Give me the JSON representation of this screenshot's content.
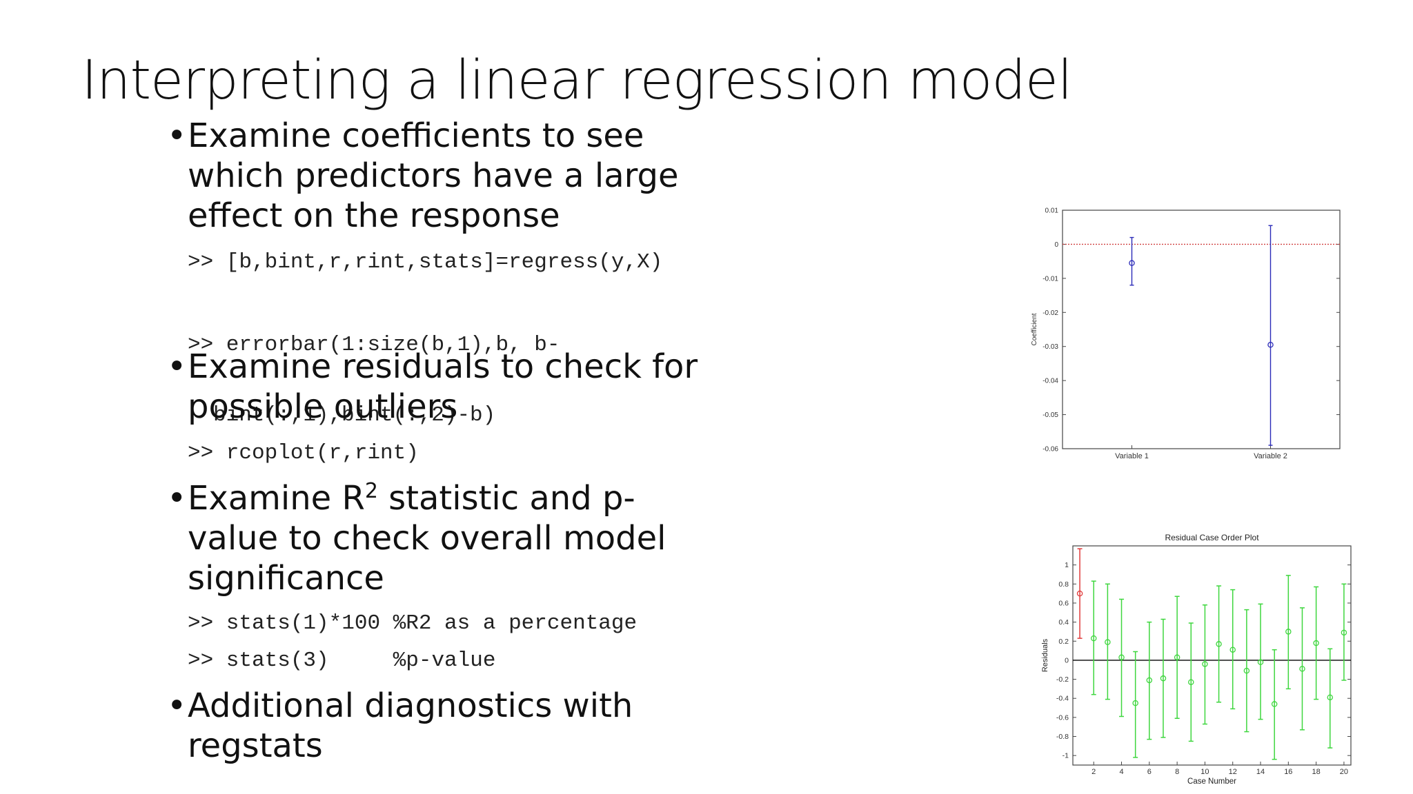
{
  "slide": {
    "title": "Interpreting a linear regression model",
    "bullets": [
      {
        "lines": [
          "Examine coefficients to see",
          "which predictors have a large",
          "effect on the response"
        ]
      },
      {
        "lines": [
          "Examine residuals to check for",
          "possible outliers"
        ]
      },
      {
        "lines_parts": [
          {
            "pre": "Examine R",
            "sup": "2",
            "post": " statistic and p-"
          }
        ],
        "lines": [
          "value to check overall model",
          "significance"
        ]
      },
      {
        "lines": [
          "Additional diagnostics with",
          "regstats"
        ]
      }
    ],
    "code": {
      "regress": ">> [b,bint,r,rint,stats]=regress(y,X)",
      "errorbar_1": ">> errorbar(1:size(b,1),b, b-",
      "errorbar_2": "bint(:,1),bint(:,2)-b)",
      "rcoplot": ">> rcoplot(r,rint)",
      "stats1": ">> stats(1)*100 %R2 as a percentage",
      "stats3": ">> stats(3)     %p-value"
    }
  },
  "chart_data": [
    {
      "type": "scatter",
      "title": "",
      "xlabel": "",
      "ylabel": "Coefficient",
      "categories": [
        "Variable 1",
        "Variable 2"
      ],
      "ylim": [
        -0.06,
        0.01
      ],
      "yticks": [
        "0.01",
        "0",
        "-0.01",
        "-0.02",
        "-0.03",
        "-0.04",
        "-0.05",
        "-0.06"
      ],
      "reference_line": {
        "y": 0,
        "color": "#d04040",
        "style": "dotted"
      },
      "points": [
        {
          "x": 1,
          "y": -0.0055,
          "low": -0.012,
          "high": 0.002
        },
        {
          "x": 2,
          "y": -0.0295,
          "low": -0.059,
          "high": 0.0055
        }
      ],
      "color": "#2a2ab8"
    },
    {
      "type": "scatter",
      "title": "Residual Case Order Plot",
      "xlabel": "Case Number",
      "ylabel": "Residuals",
      "xlim": [
        0.5,
        20.5
      ],
      "ylim": [
        -1.1,
        1.2
      ],
      "xticks": [
        "2",
        "4",
        "6",
        "8",
        "10",
        "12",
        "14",
        "16",
        "18",
        "20"
      ],
      "yticks": [
        "1",
        "0.8",
        "0.6",
        "0.4",
        "0.2",
        "0",
        "-0.2",
        "-0.4",
        "-0.6",
        "-0.8",
        "-1"
      ],
      "reference_line": {
        "y": 0,
        "color": "#000000"
      },
      "colors": {
        "normal": "#3ed63e",
        "outlier": "#e03a3a"
      },
      "points": [
        {
          "x": 1,
          "y": 0.7,
          "low": 0.23,
          "high": 1.17,
          "outlier": true
        },
        {
          "x": 2,
          "y": 0.23,
          "low": -0.36,
          "high": 0.83
        },
        {
          "x": 3,
          "y": 0.19,
          "low": -0.41,
          "high": 0.8
        },
        {
          "x": 4,
          "y": 0.03,
          "low": -0.59,
          "high": 0.64
        },
        {
          "x": 5,
          "y": -0.45,
          "low": -1.02,
          "high": 0.09
        },
        {
          "x": 6,
          "y": -0.21,
          "low": -0.83,
          "high": 0.4
        },
        {
          "x": 7,
          "y": -0.19,
          "low": -0.81,
          "high": 0.43
        },
        {
          "x": 8,
          "y": 0.03,
          "low": -0.61,
          "high": 0.67
        },
        {
          "x": 9,
          "y": -0.23,
          "low": -0.85,
          "high": 0.39
        },
        {
          "x": 10,
          "y": -0.04,
          "low": -0.67,
          "high": 0.58
        },
        {
          "x": 11,
          "y": 0.17,
          "low": -0.44,
          "high": 0.78
        },
        {
          "x": 12,
          "y": 0.11,
          "low": -0.51,
          "high": 0.74
        },
        {
          "x": 13,
          "y": -0.11,
          "low": -0.75,
          "high": 0.53
        },
        {
          "x": 14,
          "y": -0.02,
          "low": -0.62,
          "high": 0.59
        },
        {
          "x": 15,
          "y": -0.46,
          "low": -1.04,
          "high": 0.11
        },
        {
          "x": 16,
          "y": 0.3,
          "low": -0.3,
          "high": 0.89
        },
        {
          "x": 17,
          "y": -0.09,
          "low": -0.73,
          "high": 0.55
        },
        {
          "x": 18,
          "y": 0.18,
          "low": -0.41,
          "high": 0.77
        },
        {
          "x": 19,
          "y": -0.39,
          "low": -0.92,
          "high": 0.12
        },
        {
          "x": 20,
          "y": 0.29,
          "low": -0.21,
          "high": 0.8
        }
      ]
    }
  ]
}
